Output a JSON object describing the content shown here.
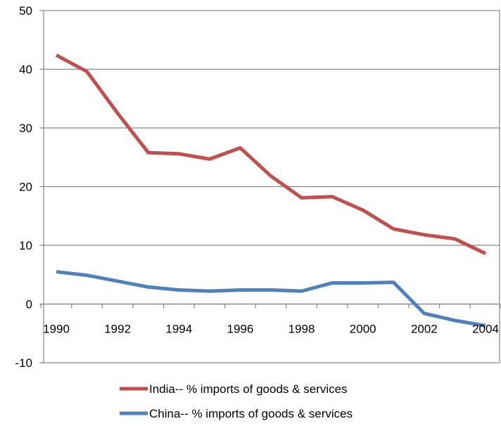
{
  "chart_data": {
    "type": "line",
    "title": "",
    "xlabel": "",
    "ylabel": "",
    "ylim": [
      -10,
      50
    ],
    "yticks": [
      -10,
      0,
      10,
      20,
      30,
      40,
      50
    ],
    "xlim": [
      1990,
      2004
    ],
    "xticks": [
      1990,
      1992,
      1994,
      1996,
      1998,
      2000,
      2002,
      2004
    ],
    "grid": true,
    "legend_position": "bottom",
    "x": [
      1990,
      1991,
      1992,
      1993,
      1994,
      1995,
      1996,
      1997,
      1998,
      1999,
      2000,
      2001,
      2002,
      2003,
      2004
    ],
    "series": [
      {
        "name": "India-- % imports of goods & services",
        "color": "#c0504d",
        "values": [
          42.4,
          39.6,
          32.5,
          25.8,
          25.6,
          24.7,
          26.6,
          21.8,
          18.1,
          18.3,
          16.0,
          12.8,
          11.8,
          11.1,
          8.6
        ]
      },
      {
        "name": "China-- % imports of goods & services",
        "color": "#4f81bd",
        "values": [
          5.5,
          4.9,
          3.9,
          2.9,
          2.4,
          2.2,
          2.4,
          2.4,
          2.2,
          3.6,
          3.6,
          3.7,
          -1.6,
          -2.8,
          -3.7
        ]
      }
    ]
  }
}
